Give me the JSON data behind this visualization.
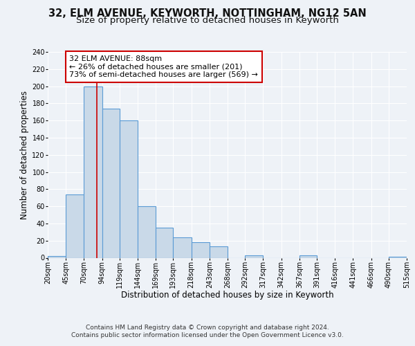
{
  "title": "32, ELM AVENUE, KEYWORTH, NOTTINGHAM, NG12 5AN",
  "subtitle": "Size of property relative to detached houses in Keyworth",
  "xlabel": "Distribution of detached houses by size in Keyworth",
  "ylabel": "Number of detached properties",
  "bar_left_edges": [
    20,
    45,
    70,
    95,
    119,
    144,
    169,
    193,
    218,
    243,
    268,
    292,
    317,
    342,
    367,
    391,
    416,
    441,
    466,
    490
  ],
  "bar_widths": [
    25,
    25,
    25,
    24,
    25,
    25,
    24,
    25,
    25,
    25,
    24,
    25,
    25,
    25,
    24,
    25,
    25,
    25,
    24,
    25
  ],
  "bar_heights": [
    2,
    74,
    200,
    174,
    160,
    60,
    35,
    24,
    18,
    13,
    0,
    3,
    0,
    0,
    3,
    0,
    0,
    0,
    0,
    1
  ],
  "bar_color": "#c9d9e8",
  "bar_edge_color": "#5b9bd5",
  "tick_labels": [
    "20sqm",
    "45sqm",
    "70sqm",
    "94sqm",
    "119sqm",
    "144sqm",
    "169sqm",
    "193sqm",
    "218sqm",
    "243sqm",
    "268sqm",
    "292sqm",
    "317sqm",
    "342sqm",
    "367sqm",
    "391sqm",
    "416sqm",
    "441sqm",
    "466sqm",
    "490sqm",
    "515sqm"
  ],
  "tick_positions": [
    20,
    45,
    70,
    95,
    119,
    144,
    169,
    193,
    218,
    243,
    268,
    292,
    317,
    342,
    367,
    391,
    416,
    441,
    466,
    490,
    515
  ],
  "ylim": [
    0,
    240
  ],
  "xlim": [
    20,
    515
  ],
  "yticks": [
    0,
    20,
    40,
    60,
    80,
    100,
    120,
    140,
    160,
    180,
    200,
    220,
    240
  ],
  "property_x": 88,
  "property_line_color": "#cc0000",
  "annotation_box_text": "32 ELM AVENUE: 88sqm\n← 26% of detached houses are smaller (201)\n73% of semi-detached houses are larger (569) →",
  "annotation_box_color": "#ffffff",
  "annotation_box_edge_color": "#cc0000",
  "footer_line1": "Contains HM Land Registry data © Crown copyright and database right 2024.",
  "footer_line2": "Contains public sector information licensed under the Open Government Licence v3.0.",
  "background_color": "#eef2f7",
  "plot_background_color": "#eef2f7",
  "grid_color": "#ffffff",
  "title_fontsize": 10.5,
  "subtitle_fontsize": 9.5,
  "axis_label_fontsize": 8.5,
  "tick_fontsize": 7,
  "annotation_fontsize": 8,
  "footer_fontsize": 6.5
}
